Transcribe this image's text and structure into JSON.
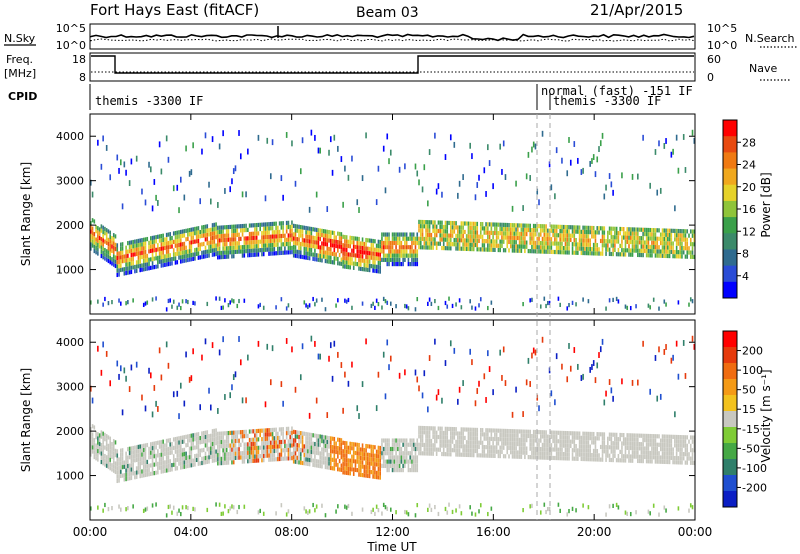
{
  "header": {
    "title": "Fort Hays East (fitACF)",
    "beam": "Beam 03",
    "date": "21/Apr/2015"
  },
  "top_panels": {
    "nsky": {
      "label": "N.Sky",
      "right_label": "N.Search",
      "ticks_left": [
        "10^5",
        "10^0"
      ],
      "ticks_right": [
        "10^5",
        "10^0"
      ]
    },
    "freq": {
      "label_line1": "Freq.",
      "label_line2": "[MHz]",
      "right_label": "Nave",
      "ticks_left": [
        "18",
        "8"
      ],
      "ticks_right": [
        "60",
        "0"
      ]
    },
    "cpid": {
      "label": "CPID",
      "modes": [
        "themis -3300 IF",
        "normal (fast) -151 IF",
        "themis -3300 IF"
      ]
    }
  },
  "chart_data": [
    {
      "type": "heatmap",
      "name": "power",
      "ylabel": "Slant Range [km]",
      "ylim": [
        0,
        4500
      ],
      "yticks": [
        "1000",
        "2000",
        "3000",
        "4000"
      ],
      "colorbar_label": "Power [dB]",
      "colorbar_ticks": [
        "28",
        "24",
        "20",
        "16",
        "12",
        "8",
        "4"
      ],
      "colors": [
        "#0000ff",
        "#2a4cd6",
        "#2f6b8f",
        "#3b8a6a",
        "#3aa04a",
        "#8fc43a",
        "#e6d22a",
        "#f0a81e",
        "#f07a12",
        "#e84a10",
        "#ff0000"
      ]
    },
    {
      "type": "heatmap",
      "name": "velocity",
      "ylabel": "Slant Range [km]",
      "ylim": [
        0,
        4500
      ],
      "yticks": [
        "1000",
        "2000",
        "3000",
        "4000"
      ],
      "colorbar_label": "Velocity [m s⁻¹]",
      "colorbar_ticks": [
        "200",
        "100",
        "50",
        "15",
        "-15",
        "-50",
        "-100",
        "-200"
      ],
      "colors": [
        "#0b1fc4",
        "#1f4fd0",
        "#2f7f6a",
        "#45a845",
        "#7fcc36",
        "#c8c8c0",
        "#f2c21e",
        "#f49a16",
        "#f06c10",
        "#e63a0c",
        "#ff0000"
      ]
    }
  ],
  "xaxis": {
    "label": "Time UT",
    "ticks": [
      "00:00",
      "04:00",
      "08:00",
      "12:00",
      "16:00",
      "20:00",
      "00:00"
    ]
  }
}
